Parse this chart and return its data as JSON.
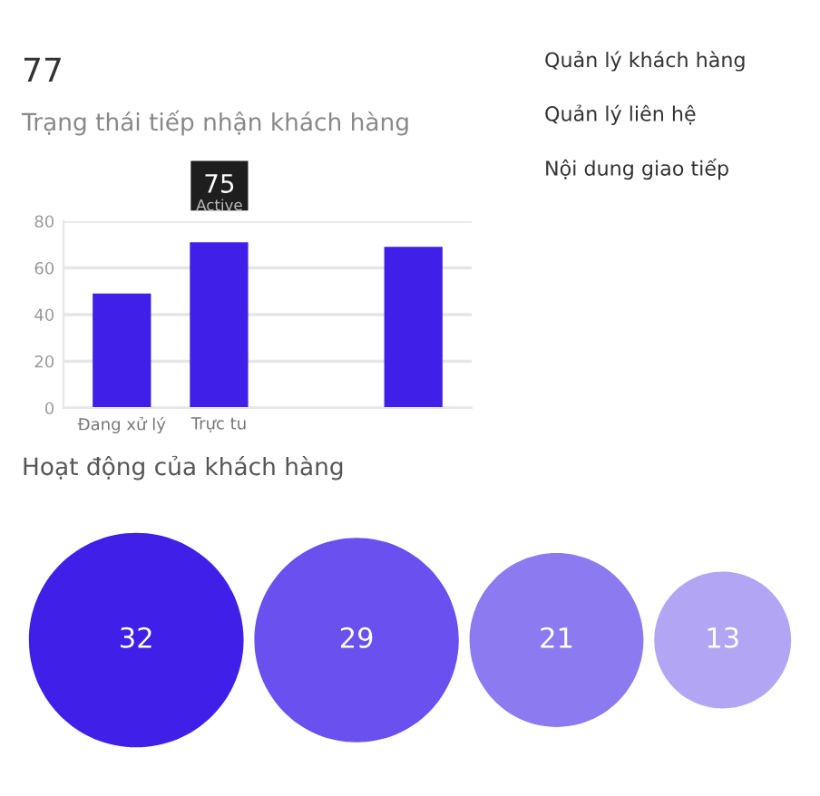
{
  "chart_data": [
    {
      "type": "bar",
      "title": "77",
      "subtitle": "Trạng thái tiếp nhận khách hàng",
      "categories": [
        "Đang xử lý",
        "Trực tu",
        null,
        null
      ],
      "values": [
        49,
        71,
        null,
        69
      ],
      "color": "#4020e8",
      "ylim": [
        0,
        80
      ],
      "yticks": [
        0,
        20,
        40,
        60,
        80
      ],
      "grid": "y",
      "annotations": [
        "75",
        "Active"
      ]
    },
    {
      "type": "other",
      "annotations": [
        "Quản lý khách hàng",
        "Quản lý liên hệ",
        "Nội dung giao tiếp"
      ]
    },
    {
      "type": "other",
      "title": "Hoạt động của khách hàng",
      "values": [
        32,
        29,
        21,
        13
      ],
      "colors": [
        "#4020e8",
        "#6a50ef",
        "#8c7af1",
        "#b2a6f4"
      ],
      "data_labels": true
    }
  ]
}
